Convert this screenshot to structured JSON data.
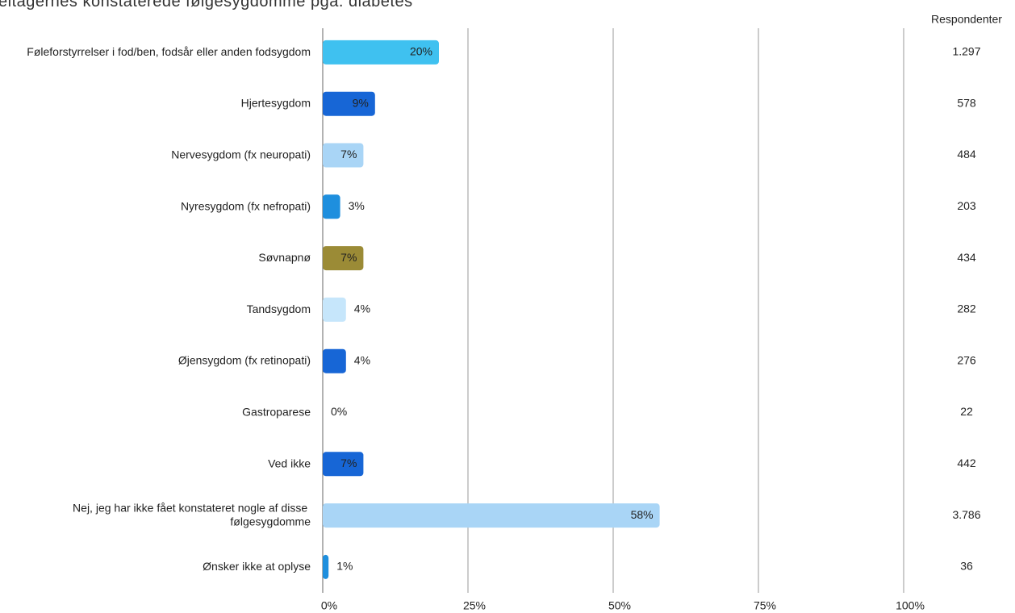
{
  "chart_data": {
    "type": "bar",
    "orientation": "horizontal",
    "title": "eltagernes konstaterede følgesygdomme pga. diabetes",
    "categories": [
      "Føleforstyrrelser i fod/ben, fodsår eller anden fodsygdom",
      "Hjertesygdom",
      "Nervesygdom (fx neuropati)",
      "Nyresygdom (fx nefropati)",
      "Søvnapnø",
      "Tandsygdom",
      "Øjensygdom (fx retinopati)",
      "Gastroparese",
      "Ved ikke",
      "Nej, jeg har ikke fået konstateret nogle af disse følgesygdomme",
      "Ønsker ikke at oplyse"
    ],
    "values": [
      20,
      9,
      7,
      3,
      7,
      4,
      4,
      0,
      7,
      58,
      1
    ],
    "value_labels": [
      "20%",
      "9%",
      "7%",
      "3%",
      "7%",
      "4%",
      "4%",
      "0%",
      "7%",
      "58%",
      "1%"
    ],
    "colors": [
      "#3fc1f0",
      "#1766d6",
      "#a9d5f6",
      "#1e8fde",
      "#9b8b36",
      "#c6e6fb",
      "#1766d6",
      "#1766d6",
      "#1766d6",
      "#a9d5f6",
      "#1e8fde"
    ],
    "respondents_header": "Respondenter",
    "respondents": [
      1297,
      578,
      484,
      203,
      434,
      282,
      276,
      22,
      442,
      3786,
      36
    ],
    "respondents_labels": [
      "1.297",
      "578",
      "484",
      "203",
      "434",
      "282",
      "276",
      "22",
      "442",
      "3.786",
      "36"
    ],
    "xlim": [
      0,
      100
    ],
    "xticks": [
      {
        "value": 0,
        "label": "0%"
      },
      {
        "value": 25,
        "label": "25%"
      },
      {
        "value": 50,
        "label": "50%"
      },
      {
        "value": 75,
        "label": "75%"
      },
      {
        "value": 100,
        "label": "100%"
      }
    ],
    "grid": true
  }
}
